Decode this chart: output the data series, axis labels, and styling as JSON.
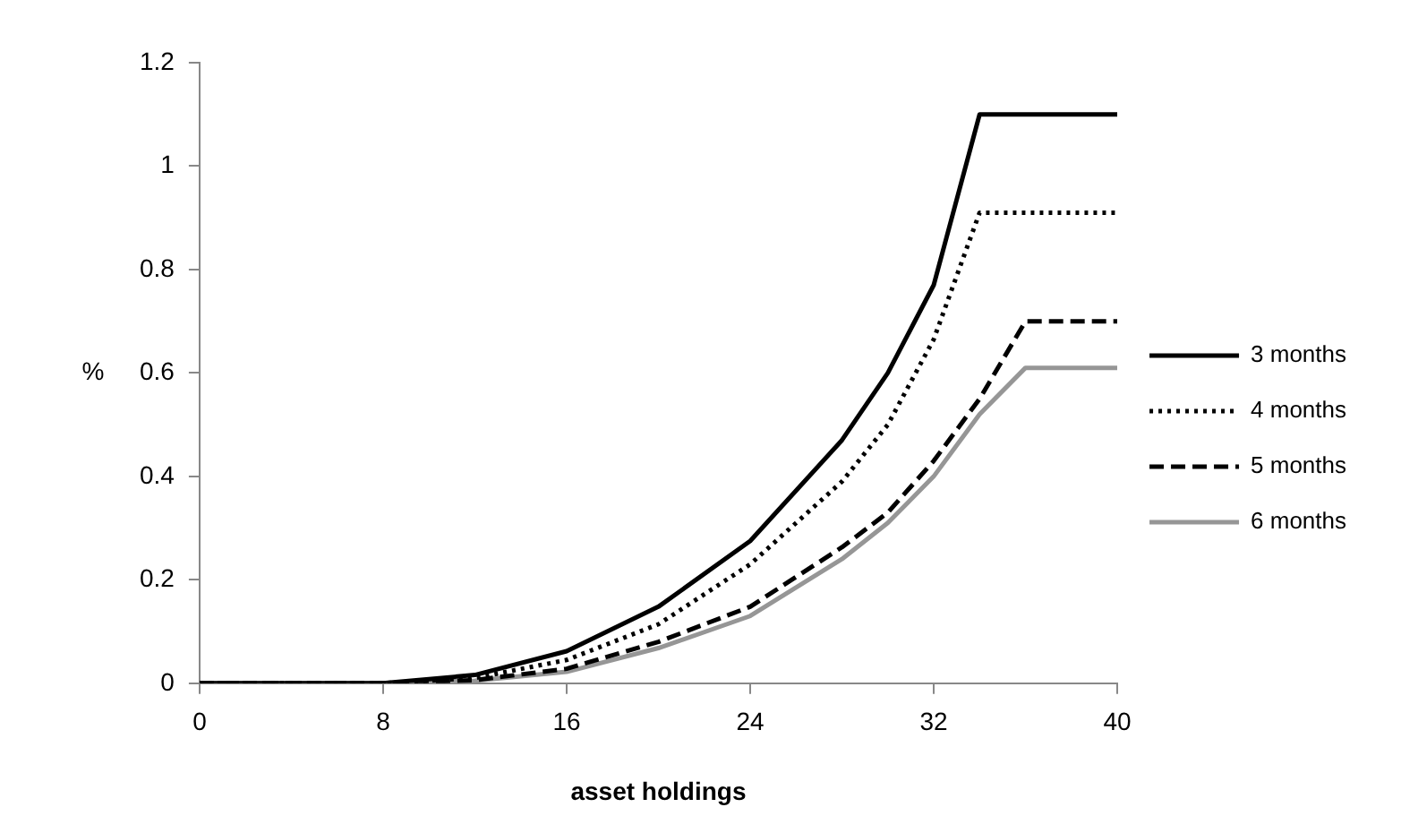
{
  "chart_data": {
    "type": "line",
    "xlabel": "asset holdings",
    "ylabel": "%",
    "xlim": [
      0,
      40
    ],
    "xticks": [
      0,
      8,
      16,
      24,
      32,
      40
    ],
    "ylim": [
      0,
      1.2
    ],
    "yticks": [
      0,
      0.2,
      0.4,
      0.6,
      0.8,
      1,
      1.2
    ],
    "grid": false,
    "legend": "right",
    "marker": "none",
    "series": [
      {
        "name": "3 months",
        "color": "#000000",
        "line_style": "solid",
        "x": [
          0,
          8,
          12,
          16,
          20,
          24,
          28,
          30,
          32,
          34,
          40
        ],
        "values": [
          0,
          0,
          0.016,
          0.062,
          0.148,
          0.275,
          0.47,
          0.6,
          0.77,
          1.1,
          1.1
        ]
      },
      {
        "name": "4 months",
        "color": "#000000",
        "line_style": "dotted",
        "x": [
          0,
          8,
          12,
          16,
          20,
          24,
          28,
          30,
          32,
          34,
          40
        ],
        "values": [
          0,
          0,
          0.01,
          0.045,
          0.114,
          0.23,
          0.39,
          0.5,
          0.665,
          0.91,
          0.91
        ]
      },
      {
        "name": "5 months",
        "color": "#000000",
        "line_style": "dashed",
        "x": [
          0,
          8,
          12,
          16,
          20,
          24,
          28,
          30,
          32,
          34,
          36,
          40
        ],
        "values": [
          0,
          0,
          0.006,
          0.028,
          0.08,
          0.148,
          0.263,
          0.33,
          0.43,
          0.55,
          0.7,
          0.7
        ]
      },
      {
        "name": "6 months",
        "color": "#969696",
        "line_style": "solid",
        "x": [
          0,
          8,
          12,
          16,
          20,
          24,
          28,
          30,
          32,
          34,
          36,
          40
        ],
        "values": [
          0,
          0,
          0.005,
          0.022,
          0.068,
          0.13,
          0.24,
          0.31,
          0.4,
          0.52,
          0.61,
          0.61
        ]
      }
    ]
  }
}
